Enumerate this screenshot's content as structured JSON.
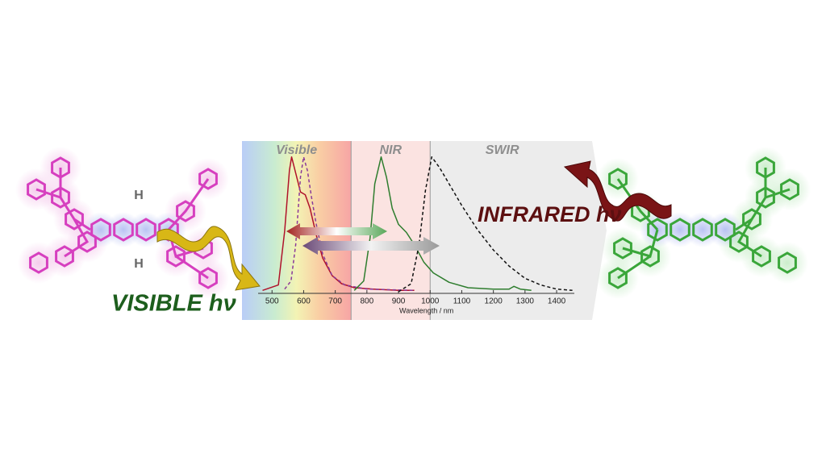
{
  "chart_data": {
    "type": "line",
    "xlabel": "Wavelength / nm",
    "xlim": [
      405,
      1456
    ],
    "ylim": [
      0,
      1.1
    ],
    "xticks": [
      500,
      600,
      700,
      800,
      900,
      1000,
      1100,
      1200,
      1300,
      1400
    ],
    "regions": [
      {
        "label": "Visible",
        "range": [
          405,
          750
        ]
      },
      {
        "label": "NIR",
        "range": [
          750,
          1000
        ]
      },
      {
        "label": "SWIR",
        "range": [
          1000,
          1456
        ]
      }
    ],
    "series": [
      {
        "color": "#b0122a",
        "dashed": false,
        "x": [
          470,
          520,
          540,
          555,
          562,
          575,
          590,
          605,
          620,
          640,
          660,
          690,
          720,
          760,
          820,
          900,
          950
        ],
        "values": [
          0.01,
          0.05,
          0.45,
          0.9,
          1.0,
          0.88,
          0.74,
          0.72,
          0.62,
          0.42,
          0.25,
          0.12,
          0.06,
          0.03,
          0.02,
          0.01,
          0.01
        ]
      },
      {
        "color": "#8a3a9a",
        "dashed": true,
        "x": [
          540,
          560,
          575,
          590,
          600,
          612,
          625,
          640,
          660,
          690,
          730,
          800,
          950
        ],
        "values": [
          0.02,
          0.08,
          0.35,
          0.85,
          1.0,
          0.9,
          0.7,
          0.5,
          0.28,
          0.12,
          0.05,
          0.02,
          0.01
        ]
      },
      {
        "color": "#2e7d2e",
        "dashed": false,
        "x": [
          760,
          790,
          810,
          825,
          845,
          862,
          880,
          900,
          925,
          950,
          980,
          1010,
          1060,
          1120,
          1200,
          1250,
          1265,
          1285,
          1320
        ],
        "values": [
          0.01,
          0.08,
          0.4,
          0.8,
          1.0,
          0.85,
          0.62,
          0.5,
          0.44,
          0.35,
          0.22,
          0.14,
          0.07,
          0.03,
          0.02,
          0.02,
          0.04,
          0.02,
          0.01
        ]
      },
      {
        "color": "#111111",
        "dashed": true,
        "x": [
          900,
          940,
          965,
          985,
          1005,
          1030,
          1060,
          1100,
          1150,
          1200,
          1250,
          1300,
          1350,
          1400,
          1450
        ],
        "values": [
          0.0,
          0.06,
          0.35,
          0.75,
          1.0,
          0.92,
          0.8,
          0.64,
          0.46,
          0.31,
          0.19,
          0.1,
          0.05,
          0.02,
          0.01
        ]
      }
    ],
    "annotations": [
      {
        "text": "VISIBLE hν",
        "color": "#1d5e1d"
      },
      {
        "text": "INFRARED hν",
        "color": "#5c0f10"
      }
    ]
  },
  "molecule_labels": [
    "H",
    "H"
  ]
}
